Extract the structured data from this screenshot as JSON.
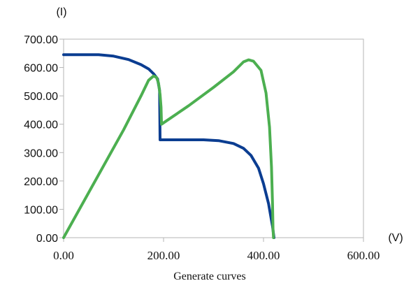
{
  "chart_data": {
    "type": "line",
    "title": "",
    "xlabel": "(V)",
    "ylabel": "(I)",
    "caption": "Generate curves",
    "xlim": [
      0,
      600
    ],
    "ylim": [
      0,
      700
    ],
    "x_ticks": [
      "0.00",
      "200.00",
      "400.00",
      "600.00"
    ],
    "y_ticks": [
      "0.00",
      "100.00",
      "200.00",
      "300.00",
      "400.00",
      "500.00",
      "600.00",
      "700.00"
    ],
    "grid": false,
    "legend": "none",
    "series": [
      {
        "color": "#0b3d91",
        "points": [
          [
            0,
            645
          ],
          [
            70,
            645
          ],
          [
            100,
            640
          ],
          [
            130,
            628
          ],
          [
            155,
            610
          ],
          [
            170,
            595
          ],
          [
            180,
            578
          ],
          [
            188,
            560
          ],
          [
            192,
            520
          ],
          [
            193,
            345
          ],
          [
            220,
            345
          ],
          [
            280,
            345
          ],
          [
            310,
            342
          ],
          [
            340,
            332
          ],
          [
            360,
            315
          ],
          [
            375,
            290
          ],
          [
            390,
            245
          ],
          [
            400,
            190
          ],
          [
            410,
            120
          ],
          [
            418,
            40
          ],
          [
            421,
            0
          ]
        ]
      },
      {
        "color": "#4caf50",
        "points": [
          [
            0,
            0
          ],
          [
            60,
            190
          ],
          [
            120,
            380
          ],
          [
            155,
            500
          ],
          [
            170,
            555
          ],
          [
            180,
            570
          ],
          [
            186,
            565
          ],
          [
            190,
            545
          ],
          [
            193,
            505
          ],
          [
            195,
            460
          ],
          [
            196,
            400
          ],
          [
            250,
            465
          ],
          [
            300,
            530
          ],
          [
            340,
            585
          ],
          [
            360,
            620
          ],
          [
            370,
            627
          ],
          [
            380,
            622
          ],
          [
            395,
            590
          ],
          [
            405,
            510
          ],
          [
            412,
            390
          ],
          [
            416,
            250
          ],
          [
            418,
            120
          ],
          [
            419,
            30
          ],
          [
            420,
            0
          ]
        ]
      }
    ]
  }
}
